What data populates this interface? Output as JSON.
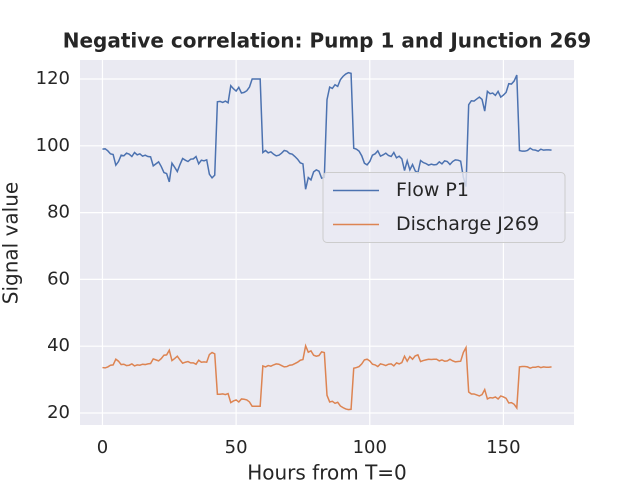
{
  "chart_data": {
    "type": "line",
    "title": "Negative correlation: Pump 1 and Junction 269",
    "xlabel": "Hours from T=0",
    "ylabel": "Signal value",
    "x": [
      0,
      1,
      2,
      3,
      4,
      5,
      6,
      7,
      8,
      9,
      10,
      11,
      12,
      13,
      14,
      15,
      16,
      17,
      18,
      19,
      20,
      21,
      22,
      23,
      24,
      25,
      26,
      27,
      28,
      29,
      30,
      31,
      32,
      33,
      34,
      35,
      36,
      37,
      38,
      39,
      40,
      41,
      42,
      43,
      44,
      45,
      46,
      47,
      48,
      49,
      50,
      51,
      52,
      53,
      54,
      55,
      56,
      57,
      58,
      59,
      60,
      61,
      62,
      63,
      64,
      65,
      66,
      67,
      68,
      69,
      70,
      71,
      72,
      73,
      74,
      75,
      76,
      77,
      78,
      79,
      80,
      81,
      82,
      83,
      84,
      85,
      86,
      87,
      88,
      89,
      90,
      91,
      92,
      93,
      94,
      95,
      96,
      97,
      98,
      99,
      100,
      101,
      102,
      103,
      104,
      105,
      106,
      107,
      108,
      109,
      110,
      111,
      112,
      113,
      114,
      115,
      116,
      117,
      118,
      119,
      120,
      121,
      122,
      123,
      124,
      125,
      126,
      127,
      128,
      129,
      130,
      131,
      132,
      133,
      134,
      135,
      136,
      137,
      138,
      139,
      140,
      141,
      142,
      143,
      144,
      145,
      146,
      147,
      148,
      149,
      150,
      151,
      152,
      153,
      154,
      155,
      156,
      157,
      158,
      159,
      160,
      161,
      162,
      163,
      164,
      165,
      166,
      167,
      168
    ],
    "series": [
      {
        "name": "Flow P1",
        "color": "#4c72b0",
        "values": [
          99.0,
          99.1,
          98.5,
          97.6,
          97.4,
          94.2,
          95.3,
          97.2,
          97.0,
          97.8,
          97.5,
          96.8,
          98.0,
          97.3,
          97.6,
          96.9,
          97.2,
          96.8,
          96.7,
          94.0,
          94.6,
          95.2,
          93.8,
          92.0,
          91.7,
          89.2,
          94.8,
          93.6,
          92.3,
          94.4,
          96.2,
          95.7,
          95.3,
          96.0,
          96.1,
          96.8,
          94.6,
          95.7,
          95.5,
          95.8,
          91.5,
          90.4,
          91.2,
          113.2,
          113.3,
          113.0,
          113.4,
          112.9,
          118.0,
          117.1,
          116.4,
          117.5,
          115.8,
          116.0,
          116.5,
          117.6,
          120.0,
          120.0,
          120.0,
          120.0,
          98.0,
          98.6,
          97.9,
          98.2,
          97.5,
          97.0,
          97.2,
          97.8,
          98.6,
          98.4,
          97.7,
          97.5,
          96.8,
          96.0,
          94.9,
          94.6,
          87.0,
          90.5,
          89.8,
          92.2,
          92.8,
          92.4,
          90.3,
          90.6,
          113.8,
          117.6,
          117.2,
          118.3,
          117.8,
          119.8,
          120.8,
          121.5,
          121.9,
          121.7,
          99.3,
          99.0,
          98.4,
          97.0,
          94.8,
          94.3,
          95.3,
          97.2,
          97.6,
          98.5,
          96.9,
          97.3,
          97.8,
          97.1,
          96.8,
          98.0,
          96.4,
          96.9,
          96.1,
          92.6,
          95.5,
          92.8,
          94.4,
          92.5,
          91.9,
          95.6,
          95.0,
          94.7,
          94.2,
          94.5,
          94.3,
          94.4,
          95.2,
          94.6,
          95.5,
          95.3,
          94.4,
          95.3,
          95.8,
          95.7,
          95.4,
          90.6,
          87.8,
          112.3,
          113.5,
          113.4,
          114.0,
          114.6,
          113.9,
          110.4,
          116.3,
          115.6,
          115.8,
          115.1,
          116.3,
          114.6,
          115.2,
          116.0,
          118.6,
          118.5,
          119.4,
          121.2,
          98.6,
          98.4,
          98.4,
          98.6,
          99.3,
          98.8,
          98.7,
          98.4,
          99.0,
          98.7,
          98.8,
          98.8,
          98.7
        ]
      },
      {
        "name": "Discharge J269",
        "color": "#dd8452",
        "values": [
          33.6,
          33.5,
          33.8,
          34.3,
          34.4,
          36.1,
          35.5,
          34.5,
          34.6,
          34.2,
          34.3,
          34.7,
          34.1,
          34.4,
          34.3,
          34.6,
          34.5,
          34.7,
          34.8,
          36.2,
          35.9,
          35.6,
          36.3,
          37.3,
          37.4,
          38.8,
          35.7,
          36.3,
          37.0,
          35.9,
          34.9,
          35.2,
          35.4,
          35.0,
          35.0,
          34.6,
          35.8,
          35.2,
          35.3,
          35.2,
          37.5,
          38.1,
          37.7,
          25.6,
          25.6,
          25.7,
          25.5,
          25.8,
          23.1,
          23.6,
          23.9,
          23.3,
          24.2,
          24.1,
          23.9,
          23.3,
          22.0,
          22.0,
          22.0,
          22.0,
          34.1,
          33.8,
          34.2,
          34.0,
          34.4,
          34.7,
          34.6,
          34.2,
          33.8,
          33.9,
          34.3,
          34.4,
          34.8,
          35.2,
          35.8,
          36.0,
          40.1,
          38.2,
          38.6,
          37.3,
          37.0,
          37.2,
          38.3,
          38.1,
          25.3,
          23.3,
          23.5,
          22.9,
          23.2,
          22.1,
          21.6,
          21.2,
          21.0,
          21.1,
          33.4,
          33.6,
          33.9,
          34.7,
          35.9,
          36.1,
          35.6,
          34.6,
          34.4,
          33.9,
          34.7,
          34.5,
          34.2,
          34.6,
          34.7,
          34.1,
          35.0,
          34.7,
          35.1,
          37.0,
          35.5,
          36.9,
          36.1,
          37.1,
          37.4,
          35.4,
          35.7,
          35.9,
          36.1,
          36.0,
          36.1,
          36.1,
          35.6,
          35.9,
          35.5,
          35.6,
          36.1,
          35.6,
          35.3,
          35.4,
          35.5,
          38.1,
          39.6,
          26.3,
          25.7,
          25.7,
          25.4,
          25.1,
          25.5,
          27.0,
          24.2,
          24.6,
          24.5,
          24.8,
          24.2,
          25.1,
          24.8,
          24.4,
          23.0,
          23.1,
          22.6,
          21.5,
          33.8,
          33.9,
          33.9,
          33.8,
          33.4,
          33.7,
          33.7,
          33.9,
          33.6,
          33.8,
          33.7,
          33.7,
          33.8
        ]
      }
    ],
    "xlim": [
      -8.4,
      176.4
    ],
    "ylim": [
      16.4,
      125.7
    ],
    "xticks": [
      0,
      50,
      100,
      150
    ],
    "yticks": [
      20,
      40,
      60,
      80,
      100,
      120
    ],
    "grid": true,
    "legend": "center right"
  }
}
